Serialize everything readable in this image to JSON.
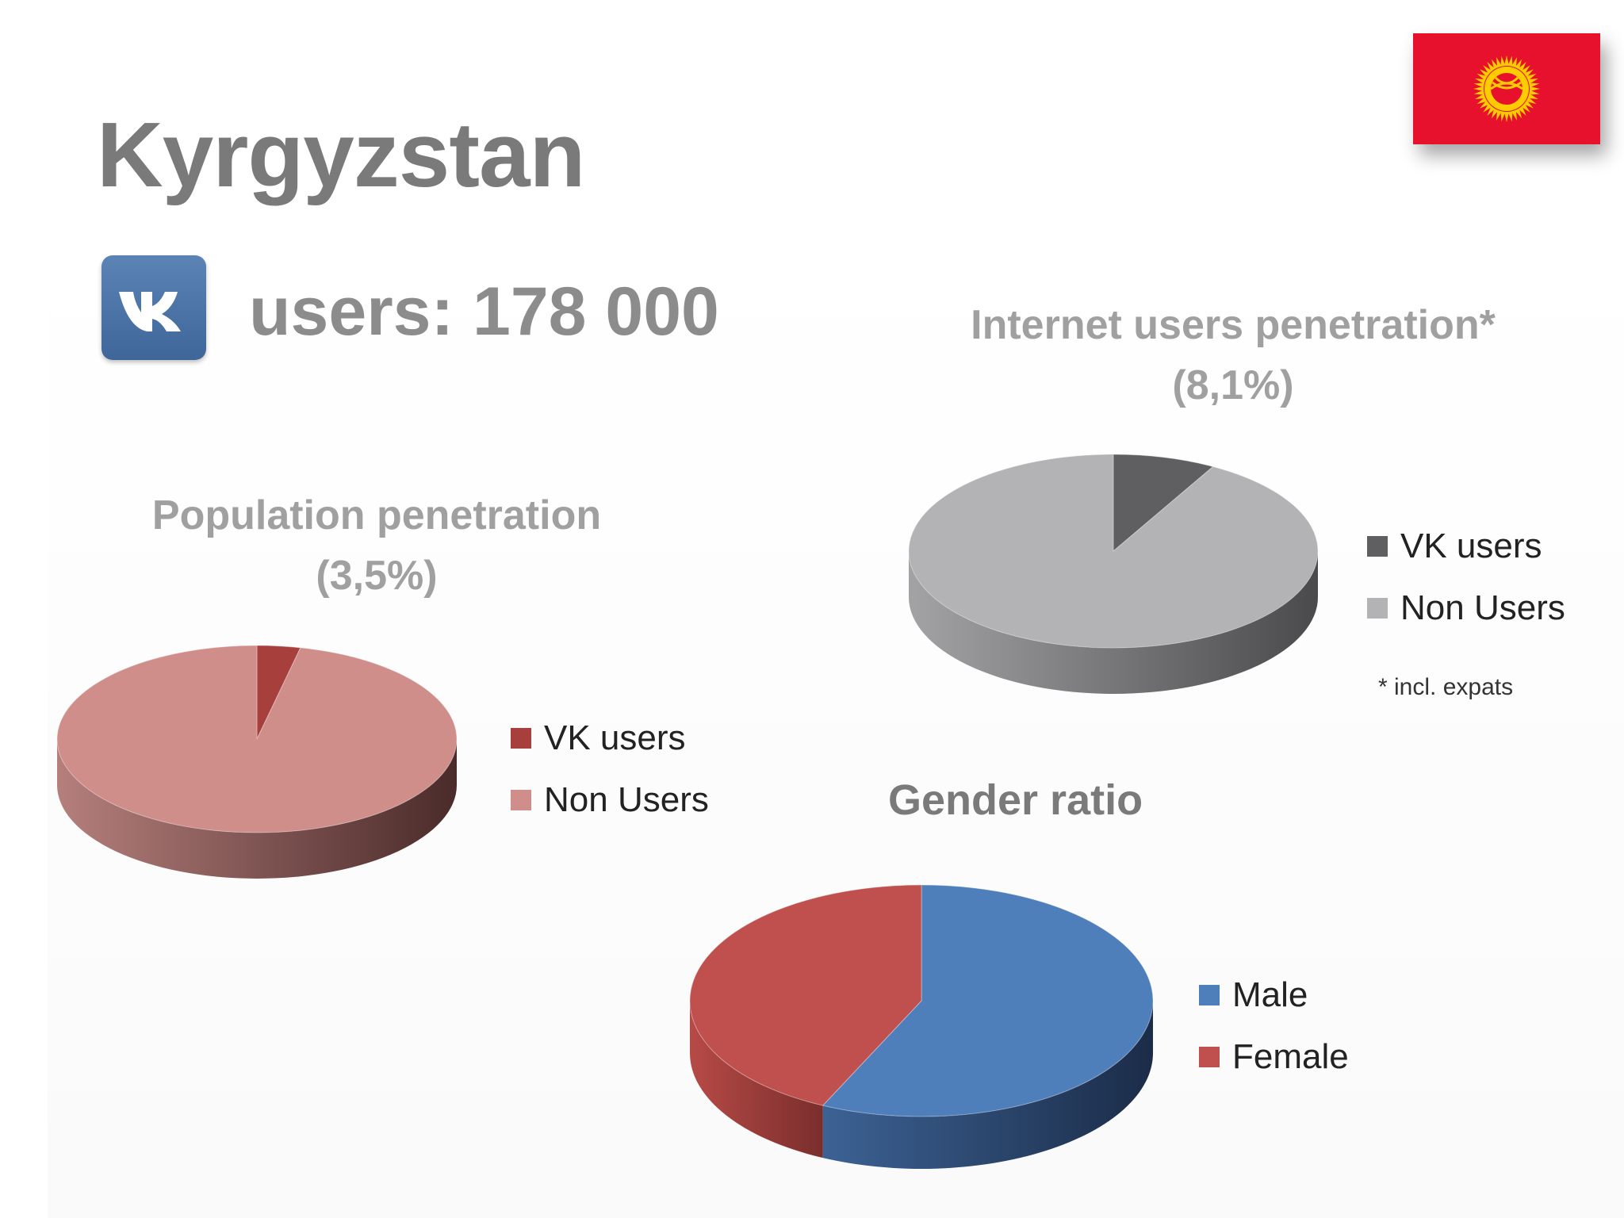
{
  "slide": {
    "title": "Kyrgyzstan",
    "users_label": "users: 178 000",
    "footnote": "* incl. expats"
  },
  "icons": {
    "flag": "kyrgyzstan-flag-icon",
    "logo": "vk-logo-icon"
  },
  "chart_data": [
    {
      "type": "pie",
      "title": "Population penetration (3,5%)",
      "title_lines": [
        "Population penetration",
        "(3,5%)"
      ],
      "categories": [
        "VK users",
        "Non Users"
      ],
      "values": [
        3.5,
        96.5
      ],
      "colors": [
        "#a7403c",
        "#d08e8b"
      ],
      "legend": "right"
    },
    {
      "type": "pie",
      "title": "Internet users penetration* (8,1%)",
      "title_lines": [
        "Internet users penetration*",
        "(8,1%)"
      ],
      "categories": [
        "VK users",
        "Non Users"
      ],
      "values": [
        8.1,
        91.9
      ],
      "colors": [
        "#5f5f62",
        "#b3b3b5"
      ],
      "legend": "right"
    },
    {
      "type": "pie",
      "title": "Gender ratio",
      "categories": [
        "Male",
        "Female"
      ],
      "values": [
        57,
        43
      ],
      "colors": [
        "#4f7fba",
        "#c0504d"
      ],
      "legend": "right"
    }
  ]
}
